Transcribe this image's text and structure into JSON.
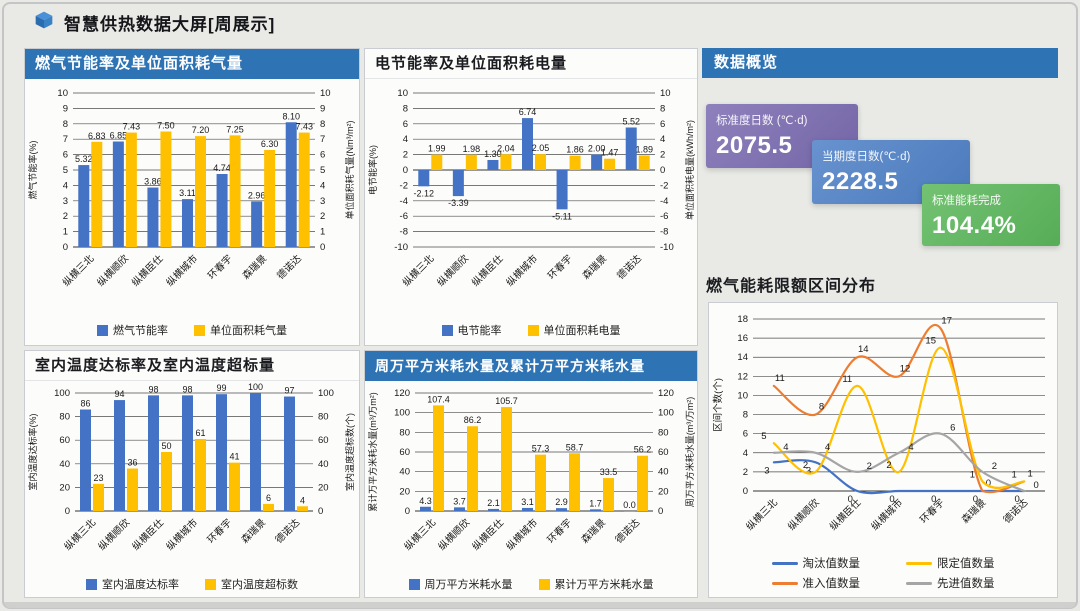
{
  "header": {
    "title": "智慧供热数据大屏[周展示]"
  },
  "overview": {
    "title": "数据概览",
    "cards": [
      {
        "label": "标准度日数 (℃·d)",
        "value": "2075.5",
        "color": "#7b6cb1"
      },
      {
        "label": "当期度日数(℃·d)",
        "value": "2228.5",
        "color": "#4f81c7"
      },
      {
        "label": "标准能耗完成",
        "value": "104.4%",
        "color": "#5cb85c"
      }
    ]
  },
  "section_titles": {
    "distribution": "燃气能耗限额区间分布"
  },
  "colors": {
    "title_bar": "#2E74B5",
    "bar_blue": "#4472C4",
    "bar_orange": "#FFC000",
    "line_red": "#ED7D31",
    "line_gray": "#A5A5A5",
    "grid": "#4d4d4d"
  },
  "chart_data": [
    {
      "type": "bar",
      "title": "燃气节能率及单位面积耗气量",
      "categories": [
        "纵横三北",
        "纵横顺欣",
        "纵横臣仕",
        "纵横城市",
        "环春宇",
        "森瑞景",
        "德诺达"
      ],
      "series": [
        {
          "name": "燃气节能率",
          "color": "#4472C4",
          "decimals": 2,
          "values": [
            5.32,
            6.85,
            3.86,
            3.11,
            4.74,
            2.96,
            8.1
          ]
        },
        {
          "name": "单位面积耗气量",
          "color": "#FFC000",
          "decimals": 2,
          "values": [
            6.83,
            7.43,
            7.5,
            7.2,
            7.25,
            6.3,
            7.43
          ]
        }
      ],
      "ylabel_left": "燃气节能率(%)",
      "ylabel_right": "单位面积耗气量(Nm³/m²)",
      "ylim": [
        0,
        10
      ],
      "ytick_step": 1,
      "grid": true,
      "legend_position": "bottom"
    },
    {
      "type": "bar",
      "title": "电节能率及单位面积耗电量",
      "categories": [
        "纵横三北",
        "纵横顺欣",
        "纵横臣仕",
        "纵横城市",
        "环春宇",
        "森瑞景",
        "德诺达"
      ],
      "series": [
        {
          "name": "电节能率",
          "color": "#4472C4",
          "decimals": 2,
          "values": [
            -2.12,
            -3.39,
            1.3,
            6.74,
            -5.11,
            2.0,
            5.52
          ]
        },
        {
          "name": "单位面积耗电量",
          "color": "#FFC000",
          "decimals": 2,
          "values": [
            1.99,
            1.98,
            2.04,
            2.05,
            1.86,
            1.47,
            1.89
          ]
        }
      ],
      "ylabel_left": "电节能率(%)",
      "ylabel_right": "单位面积耗电量(kWh/m²)",
      "ylim": [
        -10,
        10
      ],
      "ytick_step": 2,
      "grid": true,
      "legend_position": "bottom"
    },
    {
      "type": "bar",
      "title": "室内温度达标率及室内温度超标量",
      "categories": [
        "纵横三北",
        "纵横顺欣",
        "纵横臣仕",
        "纵横城市",
        "环春宇",
        "森瑞景",
        "德诺达"
      ],
      "series": [
        {
          "name": "室内温度达标率",
          "color": "#4472C4",
          "decimals": 0,
          "values": [
            86,
            94,
            98,
            98,
            99,
            100,
            97
          ]
        },
        {
          "name": "室内温度超标数",
          "color": "#FFC000",
          "decimals": 0,
          "values": [
            23,
            36,
            50,
            61,
            41,
            6,
            4
          ]
        }
      ],
      "ylabel_left": "室内温度达标率(%)",
      "ylabel_right": "室内温度超标数(个)",
      "ylim": [
        0,
        100
      ],
      "ytick_step": 20,
      "grid": true,
      "legend_position": "bottom"
    },
    {
      "type": "bar",
      "title": "周万平方米耗水量及累计万平方米耗水量",
      "categories": [
        "纵横三北",
        "纵横顺欣",
        "纵横臣仕",
        "纵横城市",
        "环春宇",
        "森瑞景",
        "德诺达"
      ],
      "series": [
        {
          "name": "周万平方米耗水量",
          "color": "#4472C4",
          "decimals": 1,
          "values": [
            4.3,
            3.7,
            2.1,
            3.1,
            2.9,
            1.7,
            0.0
          ]
        },
        {
          "name": "累计万平方米耗水量",
          "color": "#FFC000",
          "decimals": 1,
          "values": [
            107.4,
            86.2,
            105.7,
            57.3,
            58.7,
            33.5,
            56.2
          ]
        }
      ],
      "ylabel_left": "累计万平方米耗水量(m³/万m²)",
      "ylabel_right": "周万平方米耗水量(m³/万m²)",
      "ylim": [
        0,
        120
      ],
      "ytick_step": 20,
      "grid": true,
      "legend_position": "bottom"
    },
    {
      "type": "line",
      "title": "燃气能耗限额区间分布",
      "categories": [
        "纵横三北",
        "纵横顺欣",
        "纵横臣仕",
        "纵横城市",
        "环春宇",
        "森瑞景",
        "德诺达"
      ],
      "series": [
        {
          "name": "淘汰值数量",
          "color": "#4472C4",
          "decimals": 0,
          "values": [
            3,
            3,
            0,
            0,
            0,
            0,
            0
          ]
        },
        {
          "name": "准入值数量",
          "color": "#ED7D31",
          "decimals": 0,
          "values": [
            11,
            8,
            14,
            12,
            17,
            0,
            1
          ]
        },
        {
          "name": "限定值数量",
          "color": "#FFC000",
          "decimals": 0,
          "values": [
            5,
            2,
            11,
            2,
            15,
            1,
            1
          ]
        },
        {
          "name": "先进值数量",
          "color": "#A5A5A5",
          "decimals": 0,
          "values": [
            4,
            4,
            2,
            4,
            6,
            2,
            0
          ]
        }
      ],
      "ylabel": "区间个数(个)",
      "ylim": [
        0,
        18
      ],
      "ytick_step": 2,
      "grid": true,
      "legend_position": "bottom",
      "legend_order": [
        0,
        2,
        1,
        3
      ]
    }
  ]
}
